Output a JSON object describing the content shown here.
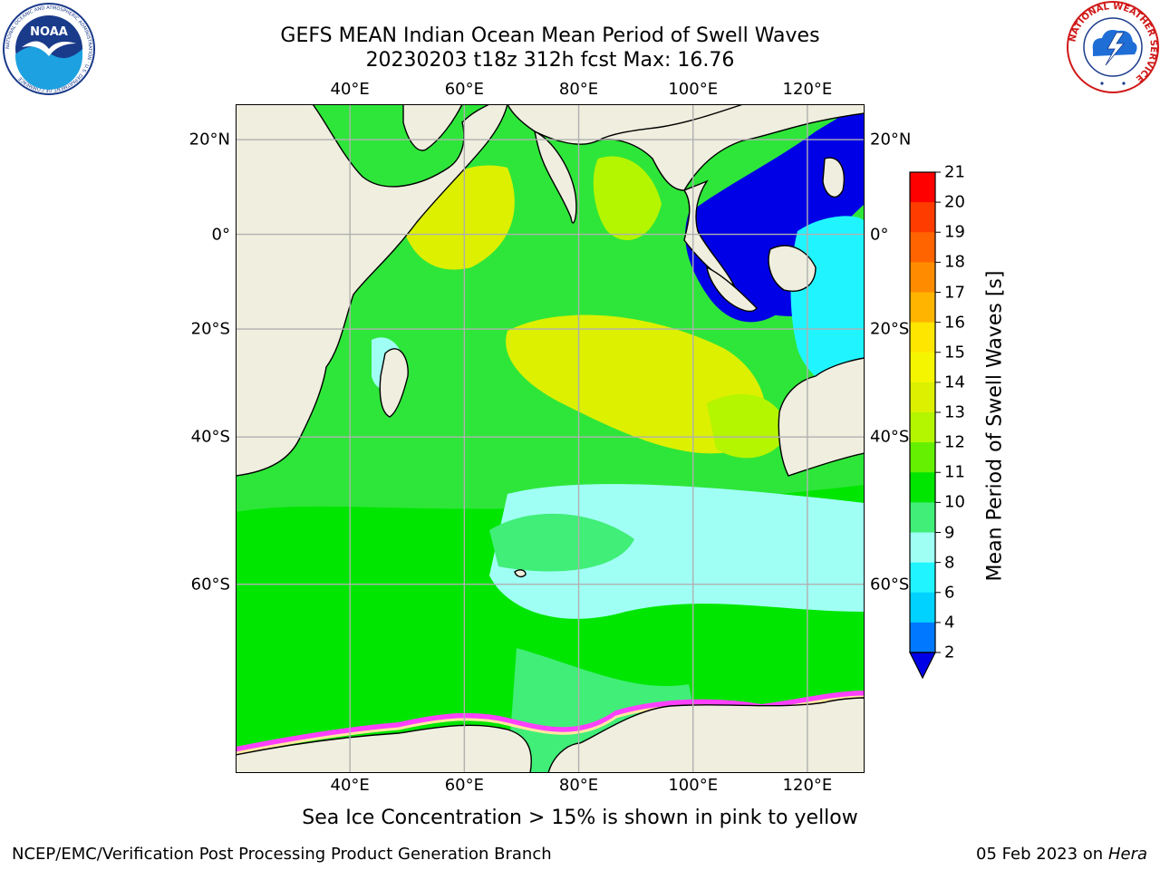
{
  "header": {
    "title_line1": "GEFS MEAN Indian Ocean Mean Period of Swell Waves",
    "title_line2": "20230203 t18z 312h fcst   Max: 16.76"
  },
  "map": {
    "lon_ticks": [
      "40°E",
      "60°E",
      "80°E",
      "100°E",
      "120°E"
    ],
    "lat_ticks_left": [
      "20°N",
      "0°",
      "20°S",
      "40°S",
      "60°S"
    ],
    "lat_ticks_right": [
      "20°N",
      "0°",
      "20°S",
      "40°S",
      "60°S"
    ],
    "lon_values": [
      40,
      60,
      80,
      100,
      120
    ],
    "lat_values": [
      20,
      0,
      -20,
      -40,
      -60
    ],
    "extent": {
      "lon_min": 20,
      "lon_max": 130,
      "lat_min": -75,
      "lat_max": 27
    },
    "land_color": "#efeedf",
    "grid_color": "#b0b0b0"
  },
  "colorbar": {
    "title": "Mean Period of Swell Waves [s]",
    "tick_labels": [
      "2",
      "4",
      "6",
      "8",
      "9",
      "10",
      "11",
      "12",
      "13",
      "14",
      "15",
      "16",
      "17",
      "18",
      "19",
      "20",
      "21"
    ],
    "colors": [
      "#0000e6",
      "#0078ff",
      "#00d2ff",
      "#20f5ff",
      "#a0fff5",
      "#40ee78",
      "#00e600",
      "#64f000",
      "#b4f500",
      "#dcf000",
      "#f5f500",
      "#ffe600",
      "#ffb400",
      "#ff8c00",
      "#ff6400",
      "#ff3c00",
      "#ff0000"
    ]
  },
  "note": "Sea Ice Concentration > 15% is shown in pink to yellow",
  "footer": {
    "left": "NCEP/EMC/Verification Post Processing Product Generation Branch",
    "right_date": "05 Feb 2023 on",
    "right_machine": "Hera"
  },
  "logos": {
    "noaa_text": "NOAA",
    "noaa_ring": "NATIONAL OCEANIC AND ATMOSPHERIC ADMINISTRATION · U.S. DEPARTMENT OF COMMERCE",
    "nws_ring": "NATIONAL WEATHER SERVICE"
  }
}
